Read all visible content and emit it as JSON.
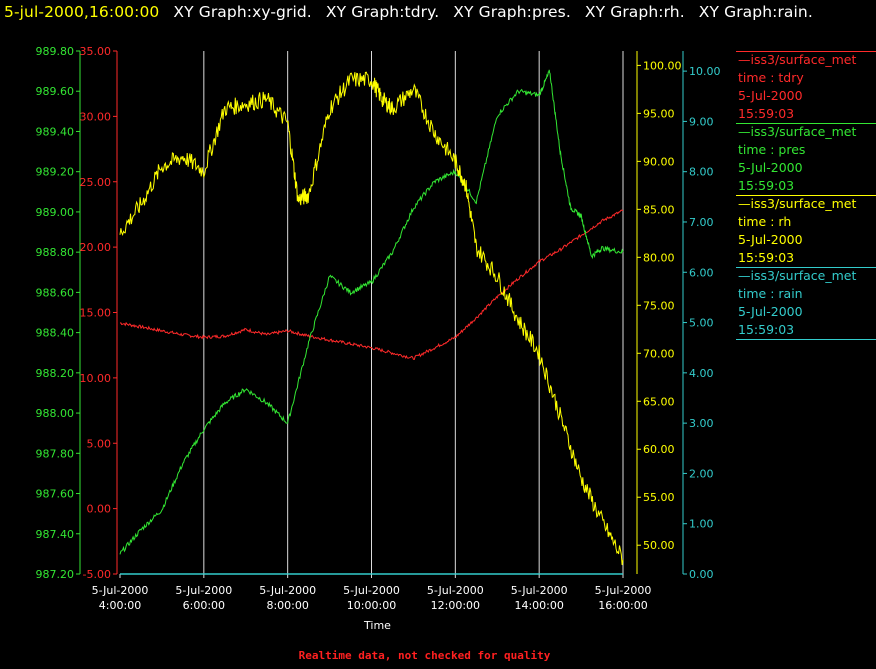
{
  "header": {
    "timestamp": "5-jul-2000,16:00:00",
    "graphs": [
      "XY Graph:xy-grid.",
      "XY Graph:tdry.",
      "XY Graph:pres.",
      "XY Graph:rh.",
      "XY Graph:rain."
    ]
  },
  "footer": "Realtime data, not checked for quality",
  "legend": [
    {
      "line1": "—iss3/surface_met",
      "line2": "time : tdry",
      "line3": "5-Jul-2000",
      "line4": "15:59:03",
      "color": "#ff2a2a"
    },
    {
      "line1": "—iss3/surface_met",
      "line2": "time : pres",
      "line3": "5-Jul-2000",
      "line4": "15:59:03",
      "color": "#33e633"
    },
    {
      "line1": "—iss3/surface_met",
      "line2": "time : rh",
      "line3": "5-Jul-2000",
      "line4": "15:59:03",
      "color": "#ffff00"
    },
    {
      "line1": "—iss3/surface_met",
      "line2": "time : rain",
      "line3": "5-Jul-2000",
      "line4": "15:59:03",
      "color": "#33cccc"
    }
  ],
  "chart_data": {
    "type": "line",
    "xlabel": "Time",
    "x_ticks": [
      "5-Jul-2000\n4:00:00",
      "5-Jul-2000\n6:00:00",
      "5-Jul-2000\n8:00:00",
      "5-Jul-2000\n10:00:00",
      "5-Jul-2000\n12:00:00",
      "5-Jul-2000\n14:00:00",
      "5-Jul-2000\n16:00:00"
    ],
    "xlim_hours": [
      4,
      16
    ],
    "grid": "vertical lines at each x tick",
    "axes": {
      "pres": {
        "color": "#33e633",
        "ylim": [
          987.2,
          989.8
        ],
        "ticks": [
          "987.20",
          "987.40",
          "987.60",
          "987.80",
          "988.00",
          "988.20",
          "988.40",
          "988.60",
          "988.80",
          "989.00",
          "989.20",
          "989.40",
          "989.60",
          "989.80"
        ]
      },
      "tdry": {
        "color": "#ff2a2a",
        "ylim": [
          -5,
          35
        ],
        "ticks": [
          "-5.00",
          "0.00",
          "5.00",
          "10.00",
          "15.00",
          "20.00",
          "25.00",
          "30.00",
          "35.00"
        ]
      },
      "rh": {
        "color": "#ffff00",
        "ylim": [
          47,
          101.5
        ],
        "ticks": [
          "50.00",
          "55.00",
          "60.00",
          "65.00",
          "70.00",
          "75.00",
          "80.00",
          "85.00",
          "90.00",
          "95.00",
          "100.00"
        ]
      },
      "rain": {
        "color": "#33cccc",
        "ylim": [
          0,
          10.4
        ],
        "ticks": [
          "0.00",
          "1.00",
          "2.00",
          "3.00",
          "4.00",
          "5.00",
          "6.00",
          "7.00",
          "8.00",
          "9.00",
          "10.00"
        ]
      }
    },
    "series": [
      {
        "name": "iss3/surface_met time : tdry",
        "axis": "tdry",
        "x_hours": [
          4,
          4.5,
          5,
          5.5,
          6,
          6.5,
          7,
          7.5,
          8,
          8.5,
          9,
          9.5,
          10,
          10.5,
          11,
          11.5,
          12,
          12.5,
          13,
          13.5,
          14,
          14.5,
          15,
          15.5,
          16
        ],
        "values": [
          14.2,
          13.9,
          13.6,
          13.3,
          13.1,
          13.2,
          13.7,
          13.3,
          13.6,
          13.2,
          12.9,
          12.6,
          12.3,
          11.9,
          11.5,
          12.3,
          13.1,
          14.6,
          16.2,
          17.6,
          18.9,
          19.8,
          20.9,
          22.0,
          22.8
        ]
      },
      {
        "name": "iss3/surface_met time : pres",
        "axis": "pres",
        "x_hours": [
          4,
          4.5,
          5,
          5.5,
          6,
          6.5,
          7,
          7.5,
          8,
          8.5,
          9,
          9.5,
          10,
          10.5,
          11,
          11.5,
          12,
          12.5,
          13,
          13.5,
          14,
          14.25,
          14.5,
          14.75,
          15,
          15.25,
          15.5,
          16
        ],
        "values": [
          987.3,
          987.42,
          987.52,
          987.75,
          987.92,
          988.05,
          988.12,
          988.05,
          987.95,
          988.35,
          988.68,
          988.6,
          988.65,
          988.8,
          989.02,
          989.15,
          989.2,
          989.05,
          989.48,
          989.6,
          989.58,
          989.7,
          989.3,
          989.02,
          988.98,
          988.78,
          988.82,
          988.8
        ]
      },
      {
        "name": "iss3/surface_met time : rh",
        "axis": "rh",
        "x_hours": [
          4,
          4.5,
          5,
          5.5,
          6,
          6.5,
          7,
          7.5,
          8,
          8.25,
          8.5,
          9,
          9.5,
          10,
          10.25,
          10.5,
          11,
          11.5,
          12,
          12.25,
          12.5,
          13,
          13.5,
          14,
          14.5,
          15,
          15.5,
          16
        ],
        "values": [
          82.5,
          85.5,
          89.5,
          90.5,
          89.0,
          95.5,
          96.0,
          96.5,
          94.0,
          86.0,
          86.5,
          95.5,
          98.5,
          98.5,
          96.5,
          95.5,
          97.5,
          93.0,
          90.0,
          87.5,
          81.0,
          78.0,
          73.5,
          70.0,
          63.5,
          57.0,
          52.5,
          48.5
        ]
      },
      {
        "name": "iss3/surface_met time : rain",
        "axis": "rain",
        "x_hours": [
          4,
          16
        ],
        "values": [
          0.0,
          0.0
        ]
      }
    ]
  }
}
